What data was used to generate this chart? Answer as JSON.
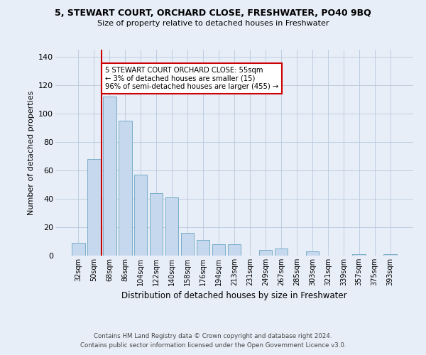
{
  "title": "5, STEWART COURT, ORCHARD CLOSE, FRESHWATER, PO40 9BQ",
  "subtitle": "Size of property relative to detached houses in Freshwater",
  "xlabel": "Distribution of detached houses by size in Freshwater",
  "ylabel": "Number of detached properties",
  "bar_labels": [
    "32sqm",
    "50sqm",
    "68sqm",
    "86sqm",
    "104sqm",
    "122sqm",
    "140sqm",
    "158sqm",
    "176sqm",
    "194sqm",
    "213sqm",
    "231sqm",
    "249sqm",
    "267sqm",
    "285sqm",
    "303sqm",
    "321sqm",
    "339sqm",
    "357sqm",
    "375sqm",
    "393sqm"
  ],
  "bar_values": [
    9,
    68,
    112,
    95,
    57,
    44,
    41,
    16,
    11,
    8,
    8,
    0,
    4,
    5,
    0,
    3,
    0,
    0,
    1,
    0,
    1
  ],
  "bar_color": "#c5d8ed",
  "bar_edge_color": "#7aaec8",
  "ylim": [
    0,
    145
  ],
  "yticks": [
    0,
    20,
    40,
    60,
    80,
    100,
    120,
    140
  ],
  "marker_color": "#cc0000",
  "annotation_title": "5 STEWART COURT ORCHARD CLOSE: 55sqm",
  "annotation_line1": "← 3% of detached houses are smaller (15)",
  "annotation_line2": "96% of semi-detached houses are larger (455) →",
  "annotation_box_color": "#ffffff",
  "annotation_box_edge": "#cc0000",
  "footnote1": "Contains HM Land Registry data © Crown copyright and database right 2024.",
  "footnote2": "Contains public sector information licensed under the Open Government Licence v3.0.",
  "bg_color": "#e8eef8",
  "plot_bg_color": "#e8eef8"
}
